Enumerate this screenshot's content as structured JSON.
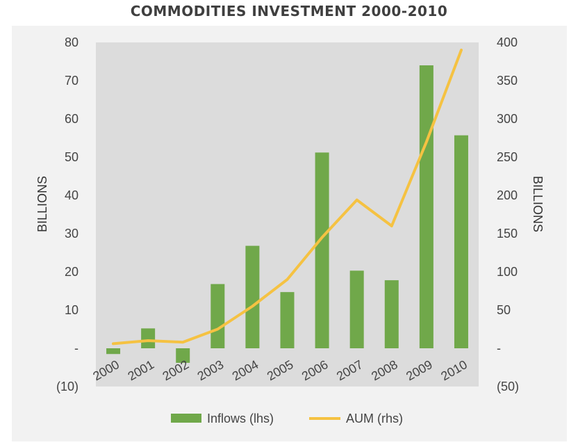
{
  "chart_data": {
    "type": "bar+line",
    "title": "COMMODITIES INVESTMENT 2000-2010",
    "categories": [
      "2000",
      "2001",
      "2002",
      "2003",
      "2004",
      "2005",
      "2006",
      "2007",
      "2008",
      "2009",
      "2010"
    ],
    "series": [
      {
        "name": "Inflows (lhs)",
        "type": "bar",
        "axis": "left",
        "values": [
          -1.5,
          5.2,
          -3.8,
          16.8,
          26.8,
          14.7,
          51.2,
          20.3,
          17.8,
          74.0,
          55.7
        ],
        "color": "#70a84a"
      },
      {
        "name": "AUM (rhs)",
        "type": "line",
        "axis": "right",
        "values": [
          6,
          10,
          8,
          25,
          55,
          90,
          145,
          194,
          160,
          270,
          390
        ],
        "color": "#f5c242"
      }
    ],
    "y_left": {
      "label": "BILLIONS",
      "ylim": [
        -10,
        80
      ],
      "ticks": [
        "(10)",
        "-",
        "10",
        "20",
        "30",
        "40",
        "50",
        "60",
        "70",
        "80"
      ]
    },
    "y_right": {
      "label": "BILLIONS",
      "ylim": [
        -50,
        400
      ],
      "ticks": [
        "(50)",
        "-",
        "50",
        "100",
        "150",
        "200",
        "250",
        "300",
        "350",
        "400"
      ]
    },
    "grid": false,
    "legend": "bottom",
    "plot_background": "#dcdcdc"
  }
}
